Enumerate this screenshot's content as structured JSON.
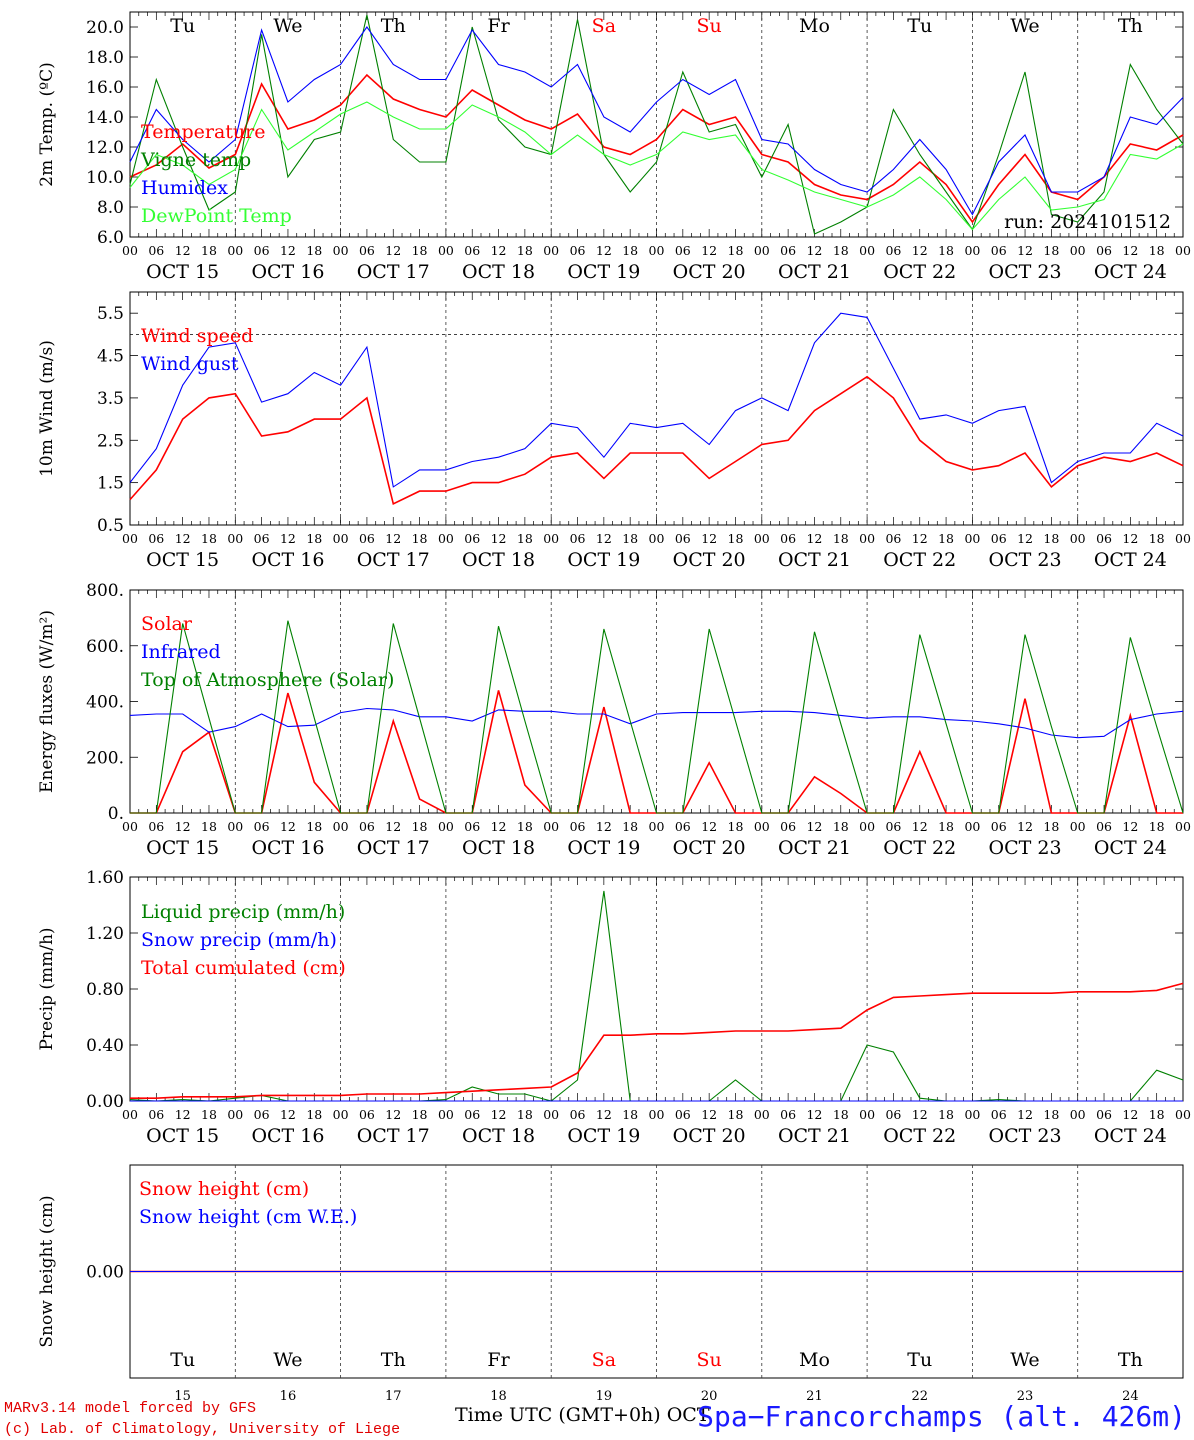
{
  "chart_data": [
    {
      "type": "line",
      "ylabel": "2m Temp. (ºC)",
      "ylim": [
        6,
        21
      ],
      "yticks": [
        "6.0",
        "8.0",
        "10.0",
        "12.0",
        "14.0",
        "16.0",
        "18.0",
        "20.0"
      ],
      "x_hours": [
        0,
        6,
        12,
        18,
        24,
        30,
        36,
        42,
        48,
        54,
        60,
        66,
        72,
        78,
        84,
        90,
        96,
        102,
        108,
        114,
        120,
        126,
        132,
        138,
        144,
        150,
        156,
        162,
        168,
        174,
        180,
        186,
        192,
        198,
        204,
        210,
        216,
        222,
        228,
        234,
        240
      ],
      "day_labels": [
        "Tu",
        "We",
        "Th",
        "Fr",
        "Sa",
        "Su",
        "Mo",
        "Tu",
        "We",
        "Th"
      ],
      "date_labels": [
        "OCT 15",
        "OCT 16",
        "OCT 17",
        "OCT 18",
        "OCT 19",
        "OCT 20",
        "OCT 21",
        "OCT 22",
        "OCT 23",
        "OCT 24"
      ],
      "annotation": "run: 2024101512",
      "series": [
        {
          "name": "Temperature",
          "color": "#ff0000",
          "values": [
            10.0,
            10.8,
            12.2,
            10.6,
            11.5,
            16.2,
            13.2,
            13.8,
            14.8,
            16.8,
            15.2,
            14.5,
            14.0,
            15.8,
            14.8,
            13.8,
            13.2,
            14.2,
            12.0,
            11.5,
            12.5,
            14.5,
            13.5,
            14.0,
            11.5,
            11.0,
            9.5,
            8.8,
            8.5,
            9.5,
            11.0,
            9.5,
            7.0,
            9.5,
            11.5,
            9.0,
            8.5,
            10.0,
            12.2,
            11.8,
            12.8
          ]
        },
        {
          "name": "Vigne temp",
          "color": "#008000",
          "values": [
            9.5,
            16.5,
            12.0,
            7.8,
            9.0,
            19.5,
            10.0,
            12.5,
            13.0,
            20.8,
            12.5,
            11.0,
            11.0,
            20.0,
            13.8,
            12.0,
            11.5,
            20.5,
            11.5,
            9.0,
            11.0,
            17.0,
            13.0,
            13.5,
            10.0,
            13.5,
            6.2,
            7.0,
            8.0,
            14.5,
            11.5,
            9.0,
            6.5,
            11.5,
            17.0,
            7.5,
            7.0,
            9.0,
            17.5,
            14.5,
            12.2
          ]
        },
        {
          "name": "Humidex",
          "color": "#0000ff",
          "values": [
            11.0,
            14.5,
            12.5,
            11.0,
            12.5,
            19.8,
            15.0,
            16.5,
            17.5,
            20.0,
            17.5,
            16.5,
            16.5,
            19.8,
            17.5,
            17.0,
            16.0,
            17.5,
            14.0,
            13.0,
            15.0,
            16.5,
            15.5,
            16.5,
            12.5,
            12.2,
            10.5,
            9.5,
            9.0,
            10.5,
            12.5,
            10.5,
            7.5,
            11.0,
            12.8,
            9.0,
            9.0,
            10.0,
            14.0,
            13.5,
            15.3
          ]
        },
        {
          "name": "DewPoint Temp",
          "color": "#33ff33",
          "values": [
            9.3,
            11.5,
            10.8,
            9.5,
            10.5,
            14.5,
            11.8,
            13.0,
            14.2,
            15.0,
            14.0,
            13.2,
            13.2,
            14.8,
            14.0,
            13.0,
            11.5,
            12.8,
            11.5,
            10.8,
            11.5,
            13.0,
            12.5,
            12.8,
            10.5,
            9.8,
            9.0,
            8.5,
            8.0,
            8.8,
            10.0,
            8.5,
            6.5,
            8.5,
            10.0,
            7.8,
            8.0,
            8.5,
            11.5,
            11.2,
            12.2
          ]
        }
      ]
    },
    {
      "type": "line",
      "ylabel": "10m Wind (m/s)",
      "ylim": [
        0.5,
        6.0
      ],
      "yticks": [
        "0.5",
        "1.5",
        "2.5",
        "3.5",
        "4.5",
        "5.5"
      ],
      "reference_line": 5.0,
      "x_hours": [
        0,
        6,
        12,
        18,
        24,
        30,
        36,
        42,
        48,
        54,
        60,
        66,
        72,
        78,
        84,
        90,
        96,
        102,
        108,
        114,
        120,
        126,
        132,
        138,
        144,
        150,
        156,
        162,
        168,
        174,
        180,
        186,
        192,
        198,
        204,
        210,
        216,
        222,
        228,
        234,
        240
      ],
      "date_labels": [
        "OCT 15",
        "OCT 16",
        "OCT 17",
        "OCT 18",
        "OCT 19",
        "OCT 20",
        "OCT 21",
        "OCT 22",
        "OCT 23",
        "OCT 24"
      ],
      "series": [
        {
          "name": "Wind speed",
          "color": "#ff0000",
          "values": [
            1.1,
            1.8,
            3.0,
            3.5,
            3.6,
            2.6,
            2.7,
            3.0,
            3.0,
            3.5,
            1.0,
            1.3,
            1.3,
            1.5,
            1.5,
            1.7,
            2.1,
            2.2,
            1.6,
            2.2,
            2.2,
            2.2,
            1.6,
            2.0,
            2.4,
            2.5,
            3.2,
            3.6,
            4.0,
            3.5,
            2.5,
            2.0,
            1.8,
            1.9,
            2.2,
            1.4,
            1.9,
            2.1,
            2.0,
            2.2,
            1.9
          ]
        },
        {
          "name": "Wind gust",
          "color": "#0000ff",
          "values": [
            1.5,
            2.3,
            3.8,
            4.7,
            4.8,
            3.4,
            3.6,
            4.1,
            3.8,
            4.7,
            1.4,
            1.8,
            1.8,
            2.0,
            2.1,
            2.3,
            2.9,
            2.8,
            2.1,
            2.9,
            2.8,
            2.9,
            2.4,
            3.2,
            3.5,
            3.2,
            4.8,
            5.5,
            5.4,
            4.2,
            3.0,
            3.1,
            2.9,
            3.2,
            3.3,
            1.5,
            2.0,
            2.2,
            2.2,
            2.9,
            2.6
          ]
        }
      ]
    },
    {
      "type": "line",
      "ylabel": "Energy fluxes (W/m²)",
      "ylim": [
        0,
        800
      ],
      "yticks": [
        "0.",
        "200.",
        "400.",
        "600.",
        "800."
      ],
      "x_hours": [
        0,
        6,
        12,
        18,
        24,
        30,
        36,
        42,
        48,
        54,
        60,
        66,
        72,
        78,
        84,
        90,
        96,
        102,
        108,
        114,
        120,
        126,
        132,
        138,
        144,
        150,
        156,
        162,
        168,
        174,
        180,
        186,
        192,
        198,
        204,
        210,
        216,
        222,
        228,
        234,
        240
      ],
      "date_labels": [
        "OCT 15",
        "OCT 16",
        "OCT 17",
        "OCT 18",
        "OCT 19",
        "OCT 20",
        "OCT 21",
        "OCT 22",
        "OCT 23",
        "OCT 24"
      ],
      "series": [
        {
          "name": "Solar",
          "color": "#ff0000",
          "values": [
            0,
            0,
            220,
            290,
            0,
            0,
            430,
            110,
            0,
            0,
            330,
            50,
            0,
            0,
            440,
            100,
            0,
            0,
            380,
            0,
            0,
            0,
            180,
            0,
            0,
            0,
            130,
            70,
            0,
            0,
            220,
            0,
            0,
            0,
            410,
            0,
            0,
            0,
            350,
            0,
            0
          ]
        },
        {
          "name": "Infrared",
          "color": "#0000ff",
          "values": [
            350,
            355,
            355,
            290,
            310,
            355,
            310,
            315,
            360,
            375,
            370,
            345,
            345,
            330,
            370,
            365,
            365,
            355,
            355,
            320,
            355,
            360,
            360,
            360,
            365,
            365,
            360,
            350,
            340,
            345,
            345,
            335,
            330,
            320,
            305,
            280,
            270,
            275,
            335,
            355,
            365
          ]
        },
        {
          "name": "Top of Atmosphere (Solar)",
          "color": "#008000",
          "values": [
            0,
            0,
            680,
            340,
            0,
            0,
            690,
            340,
            0,
            0,
            680,
            340,
            0,
            0,
            670,
            330,
            0,
            0,
            660,
            330,
            0,
            0,
            660,
            330,
            0,
            0,
            650,
            320,
            0,
            0,
            640,
            320,
            0,
            0,
            640,
            310,
            0,
            0,
            630,
            310,
            0
          ]
        }
      ]
    },
    {
      "type": "line",
      "ylabel": "Precip (mm/h)",
      "ylim": [
        0,
        1.6
      ],
      "yticks": [
        "0.00",
        "0.40",
        "0.80",
        "1.20",
        "1.60"
      ],
      "x_hours": [
        0,
        6,
        12,
        18,
        24,
        30,
        36,
        42,
        48,
        54,
        60,
        66,
        72,
        78,
        84,
        90,
        96,
        102,
        108,
        114,
        120,
        126,
        132,
        138,
        144,
        150,
        156,
        162,
        168,
        174,
        180,
        186,
        192,
        198,
        204,
        210,
        216,
        222,
        228,
        234,
        240
      ],
      "date_labels": [
        "OCT 15",
        "OCT 16",
        "OCT 17",
        "OCT 18",
        "OCT 19",
        "OCT 20",
        "OCT 21",
        "OCT 22",
        "OCT 23",
        "OCT 24"
      ],
      "series": [
        {
          "name": "Liquid precip (mm/h)",
          "color": "#008000",
          "values": [
            0.01,
            0.0,
            0.01,
            0.0,
            0.02,
            0.04,
            0.0,
            0.0,
            0.0,
            0.0,
            0.0,
            0.0,
            0.01,
            0.1,
            0.05,
            0.05,
            0.0,
            0.15,
            1.5,
            0.0,
            0.0,
            0.0,
            0.0,
            0.15,
            0.0,
            0.0,
            0.0,
            0.0,
            0.4,
            0.35,
            0.02,
            0.0,
            0.0,
            0.01,
            0.0,
            0.0,
            0.0,
            0.0,
            0.0,
            0.22,
            0.15
          ]
        },
        {
          "name": "Snow precip (mm/h)",
          "color": "#0000ff",
          "values": [
            0,
            0,
            0,
            0,
            0,
            0,
            0,
            0,
            0,
            0,
            0,
            0,
            0,
            0,
            0,
            0,
            0,
            0,
            0,
            0,
            0,
            0,
            0,
            0,
            0,
            0,
            0,
            0,
            0,
            0,
            0,
            0,
            0,
            0,
            0,
            0,
            0,
            0,
            0,
            0,
            0
          ]
        },
        {
          "name": "Total cumulated (cm)",
          "color": "#ff0000",
          "values": [
            0.02,
            0.02,
            0.03,
            0.03,
            0.03,
            0.04,
            0.04,
            0.04,
            0.04,
            0.05,
            0.05,
            0.05,
            0.06,
            0.07,
            0.08,
            0.09,
            0.1,
            0.2,
            0.47,
            0.47,
            0.48,
            0.48,
            0.49,
            0.5,
            0.5,
            0.5,
            0.51,
            0.52,
            0.65,
            0.74,
            0.75,
            0.76,
            0.77,
            0.77,
            0.77,
            0.77,
            0.78,
            0.78,
            0.78,
            0.79,
            0.84
          ]
        }
      ]
    },
    {
      "type": "line",
      "ylabel": "Snow height (cm)",
      "ylim": [
        -1,
        1
      ],
      "yticks": [
        "0.00"
      ],
      "x_hours": [
        0,
        240
      ],
      "day_labels": [
        "Tu",
        "We",
        "Th",
        "Fr",
        "Sa",
        "Su",
        "Mo",
        "Tu",
        "We",
        "Th"
      ],
      "day_numbers": [
        "15",
        "16",
        "17",
        "18",
        "19",
        "20",
        "21",
        "22",
        "23",
        "24"
      ],
      "series": [
        {
          "name": "Snow height (cm)",
          "color": "#ff0000",
          "values": [
            0,
            0
          ]
        },
        {
          "name": "Snow height (cm W.E.)",
          "color": "#0000ff",
          "values": [
            0,
            0
          ]
        }
      ]
    }
  ],
  "hour_tick_labels": [
    "00",
    "06",
    "12",
    "18"
  ],
  "weekend_days": [
    "Sa",
    "Su"
  ],
  "footer": {
    "credit_line1": "MARv3.14 model forced by GFS",
    "credit_line2": "(c) Lab. of Climatology, University of Liege",
    "xaxis_title": "Time UTC (GMT+0h) OCT",
    "station": "Spa−Francorchamps (alt. 426m)"
  }
}
